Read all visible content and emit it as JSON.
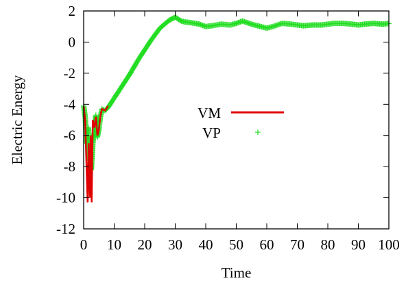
{
  "chart_data": {
    "type": "line",
    "title": "",
    "xlabel": "Time",
    "ylabel": "Electric Energy",
    "xlim": [
      0,
      100
    ],
    "ylim": [
      -12,
      2
    ],
    "xticks": [
      0,
      10,
      20,
      30,
      40,
      50,
      60,
      70,
      80,
      90,
      100
    ],
    "yticks": [
      -12,
      -10,
      -8,
      -6,
      -4,
      -2,
      0,
      2
    ],
    "xtick_labels": [
      "0",
      "10",
      "20",
      "30",
      "40",
      "50",
      "60",
      "70",
      "80",
      "90",
      "100"
    ],
    "ytick_labels": [
      "-12",
      "-10",
      "-8",
      "-6",
      "-4",
      "-2",
      "0",
      "2"
    ],
    "grid": false,
    "legend_position": "center",
    "series": [
      {
        "name": "VM",
        "style": "line",
        "color": "#e00000",
        "x": [
          0,
          0.5,
          1.0,
          1.3,
          1.6,
          2.0,
          2.3,
          2.6,
          3.0,
          3.5,
          4.0,
          4.5,
          5.0,
          5.5,
          6.0,
          7.0,
          8.0
        ],
        "y": [
          -4.1,
          -5.0,
          -8.5,
          -10.3,
          -6.5,
          -10.0,
          -6.0,
          -10.3,
          -5.0,
          -5.5,
          -4.8,
          -6.0,
          -5.6,
          -4.7,
          -4.3,
          -4.4,
          -4.1
        ]
      },
      {
        "name": "VP",
        "style": "points",
        "color": "#22dd22",
        "x": [
          0,
          0.5,
          1.0,
          1.5,
          2.0,
          2.5,
          3.0,
          3.5,
          4.0,
          4.5,
          5.0,
          5.5,
          6.0,
          7.0,
          8.0,
          10,
          12,
          15,
          18,
          20,
          22,
          25,
          28,
          30,
          32,
          33,
          35,
          38,
          40,
          42,
          45,
          48,
          50,
          52,
          55,
          58,
          60,
          62,
          65,
          68,
          70,
          72,
          75,
          78,
          80,
          82,
          85,
          88,
          90,
          92,
          95,
          98,
          100
        ],
        "y": [
          -4.1,
          -4.8,
          -6.5,
          -5.5,
          -7.5,
          -8.2,
          -6.5,
          -5.8,
          -4.7,
          -6.1,
          -5.6,
          -4.8,
          -4.3,
          -4.4,
          -4.2,
          -3.6,
          -3.0,
          -2.1,
          -1.1,
          -0.5,
          0.1,
          0.9,
          1.4,
          1.6,
          1.35,
          1.3,
          1.25,
          1.15,
          1.0,
          1.05,
          1.15,
          1.1,
          1.2,
          1.35,
          1.15,
          1.0,
          0.9,
          1.0,
          1.2,
          1.15,
          1.1,
          1.05,
          1.1,
          1.1,
          1.15,
          1.2,
          1.2,
          1.15,
          1.1,
          1.15,
          1.2,
          1.15,
          1.2
        ]
      }
    ]
  }
}
